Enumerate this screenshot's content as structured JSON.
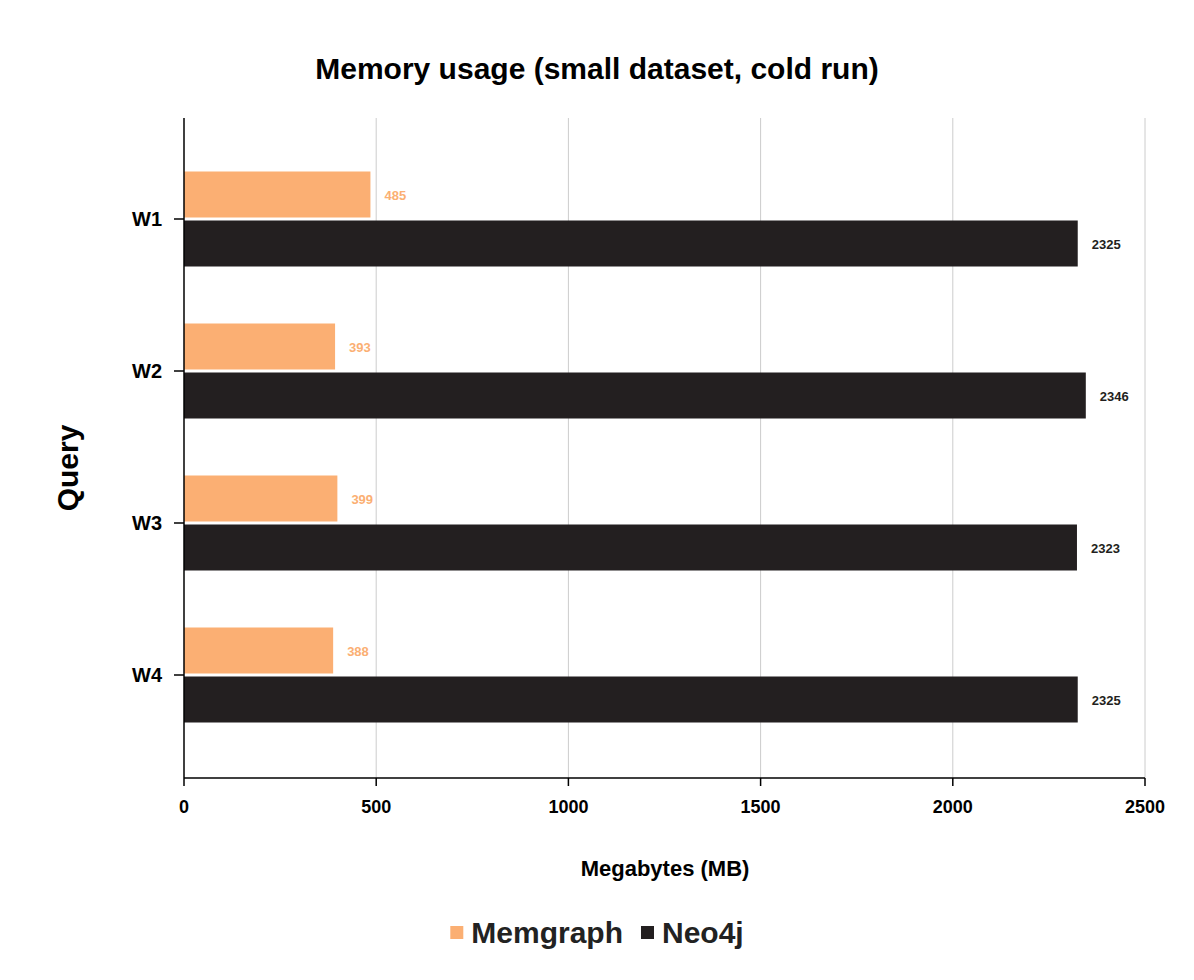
{
  "chart_data": {
    "type": "bar",
    "orientation": "horizontal",
    "title": "Memory usage (small dataset, cold run)",
    "x_label": "Megabytes (MB)",
    "y_label": "Query",
    "categories": [
      "W1",
      "W2",
      "W3",
      "W4"
    ],
    "series": [
      {
        "name": "Memgraph",
        "color": "#fbaf73",
        "values": [
          485,
          393,
          399,
          388
        ]
      },
      {
        "name": "Neo4j",
        "color": "#231f20",
        "values": [
          2325,
          2346,
          2323,
          2325
        ]
      }
    ],
    "xlim": [
      0,
      2500
    ],
    "xticks": [
      0,
      500,
      1000,
      1500,
      2000,
      2500
    ],
    "grid": true,
    "legend": "bottom",
    "data_labels": true
  }
}
